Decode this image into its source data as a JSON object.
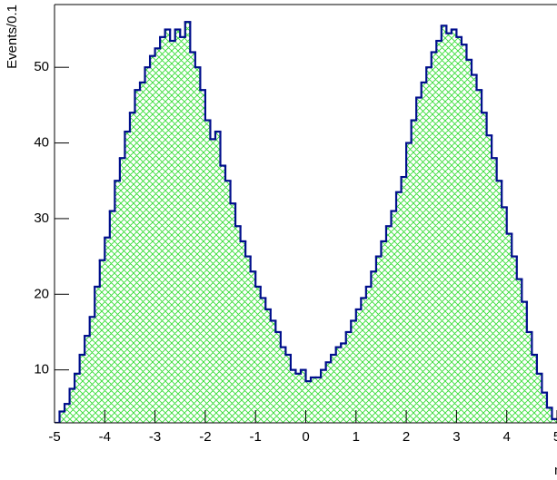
{
  "chart_data": {
    "type": "histogram",
    "xlabel": "m",
    "ylabel": "Events/0.1",
    "bins": [
      -5,
      -4.9,
      -4.8,
      -4.7,
      -4.6,
      -4.5,
      -4.4,
      -4.3,
      -4.2,
      -4.1,
      -4,
      -3.9,
      -3.8,
      -3.7,
      -3.6,
      -3.5,
      -3.4,
      -3.3,
      -3.2,
      -3.1,
      -3,
      -2.9,
      -2.8,
      -2.7,
      -2.6,
      -2.5,
      -2.4,
      -2.3,
      -2.2,
      -2.1,
      -2,
      -1.9,
      -1.8,
      -1.7,
      -1.6,
      -1.5,
      -1.4,
      -1.3,
      -1.2,
      -1.1,
      -1,
      -0.9,
      -0.8,
      -0.7,
      -0.6,
      -0.5,
      -0.4,
      -0.3,
      -0.2,
      -0.1,
      0,
      0.1,
      0.2,
      0.3,
      0.4,
      0.5,
      0.6,
      0.7,
      0.8,
      0.9,
      1,
      1.1,
      1.2,
      1.3,
      1.4,
      1.5,
      1.6,
      1.7,
      1.8,
      1.9,
      2,
      2.1,
      2.2,
      2.3,
      2.4,
      2.5,
      2.6,
      2.7,
      2.8,
      2.9,
      3,
      3.1,
      3.2,
      3.3,
      3.4,
      3.5,
      3.6,
      3.7,
      3.8,
      3.9,
      4,
      4.1,
      4.2,
      4.3,
      4.4,
      4.5,
      4.6,
      4.7,
      4.8,
      4.9,
      5
    ],
    "values": [
      3,
      4.5,
      5.5,
      7.5,
      9.5,
      12,
      14.5,
      17,
      21,
      24.5,
      27.5,
      31,
      35,
      38,
      41.5,
      44,
      47,
      48,
      50,
      51.5,
      52.5,
      54,
      55,
      53.5,
      55,
      54,
      56,
      52,
      50,
      47,
      43,
      40.5,
      41.5,
      37,
      35,
      32,
      29,
      27,
      25,
      23,
      21,
      19.5,
      18,
      16.5,
      15,
      13,
      12,
      10,
      9.5,
      10,
      8.5,
      9,
      9,
      10,
      11,
      12,
      13,
      13.5,
      15,
      16.5,
      18,
      19.5,
      21,
      23,
      25,
      27,
      29,
      31,
      33.5,
      35.5,
      40,
      43,
      46,
      48,
      50,
      52,
      53.5,
      55.5,
      54.5,
      55,
      54,
      53,
      51,
      49,
      47,
      44,
      41,
      38,
      35,
      31.5,
      28,
      25,
      22,
      19,
      15,
      12,
      9.5,
      7,
      5,
      3.5
    ],
    "fill_color": "#33dd33",
    "line_color": "#000e8c",
    "xlim": [
      -5,
      5
    ],
    "ylim": [
      3,
      58.3
    ],
    "xticks": [
      -5,
      -4,
      -3,
      -2,
      -1,
      0,
      1,
      2,
      3,
      4,
      5
    ],
    "yticks": [
      10,
      20,
      30,
      40,
      50
    ]
  }
}
